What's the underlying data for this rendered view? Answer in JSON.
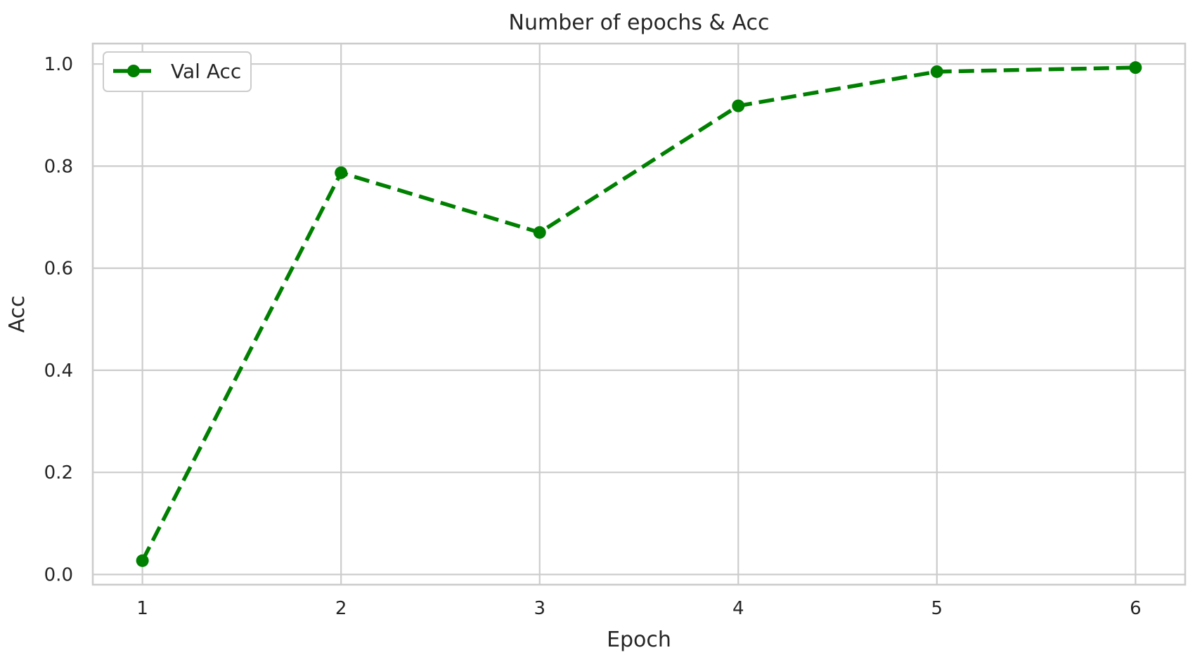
{
  "chart_data": {
    "type": "line",
    "title": "Number of epochs & Acc",
    "xlabel": "Epoch",
    "ylabel": "Acc",
    "x": [
      1,
      2,
      3,
      4,
      5,
      6
    ],
    "x_ticks": [
      1,
      2,
      3,
      4,
      5,
      6
    ],
    "y_ticks": [
      0.0,
      0.2,
      0.4,
      0.6,
      0.8,
      1.0
    ],
    "y_tick_labels": [
      "0.0",
      "0.2",
      "0.4",
      "0.6",
      "0.8",
      "1.0"
    ],
    "xlim": [
      0.75,
      6.25
    ],
    "ylim": [
      -0.02,
      1.04
    ],
    "grid": true,
    "legend_position": "upper-left",
    "series": [
      {
        "name": "Val Acc",
        "values": [
          0.027,
          0.787,
          0.67,
          0.918,
          0.985,
          0.993
        ],
        "color": "#008000",
        "line_style": "dashed",
        "marker": "circle"
      }
    ]
  }
}
